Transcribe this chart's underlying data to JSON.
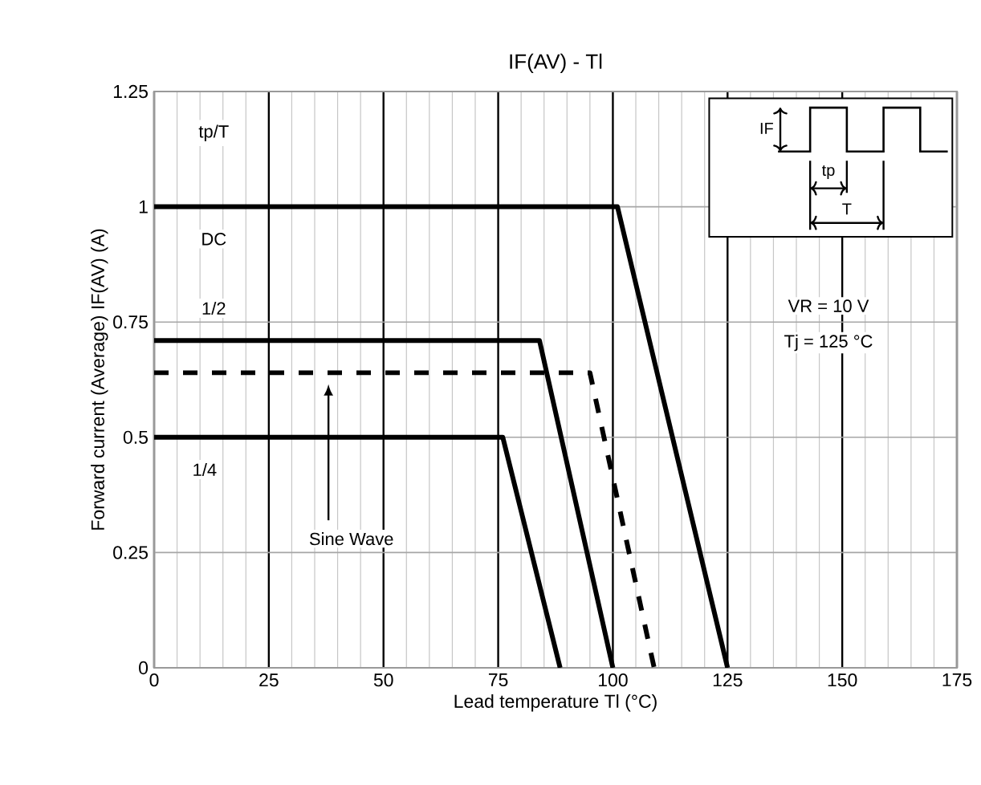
{
  "chart_data": {
    "type": "line",
    "title": "IF(AV) - Tl",
    "xlabel": "Lead temperature Tl (°C)",
    "ylabel": "Forward current (Average)  IF(AV)  (A)",
    "legend_title": "tp/T",
    "series": [
      {
        "name": "DC",
        "color": "#000000",
        "x": [
          0,
          101,
          125
        ],
        "values": [
          1,
          1,
          0
        ]
      },
      {
        "name": "1/2",
        "color": "#000000",
        "x": [
          0,
          84,
          100
        ],
        "values": [
          0.71,
          0.71,
          0
        ]
      },
      {
        "color": "#000000",
        "line_style": "dashed",
        "x": [
          0,
          95,
          109
        ],
        "values": [
          0.64,
          0.64,
          0
        ]
      },
      {
        "name": "1/4",
        "color": "#000000",
        "x": [
          0,
          76,
          88.5
        ],
        "values": [
          0.5,
          0.5,
          0
        ]
      }
    ],
    "annotations": [
      "VR = 10 V",
      "Tj = 125 °C",
      "IF",
      "tp",
      "T",
      "Sine Wave"
    ],
    "xlim": [
      0,
      175
    ],
    "ylim": [
      0,
      1.25
    ],
    "xticks": [
      0,
      25,
      50,
      75,
      100,
      125,
      150,
      175
    ],
    "yticks": [
      0,
      {
        "value": 0.25,
        "label": "0.25"
      },
      {
        "value": 0.5,
        "label": "0.5"
      },
      {
        "value": 0.75,
        "label": "0.75"
      },
      1,
      {
        "value": 1.25,
        "label": "1.25"
      }
    ],
    "grid": true,
    "legend": false,
    "marker": "none",
    "line_style": "solid"
  }
}
